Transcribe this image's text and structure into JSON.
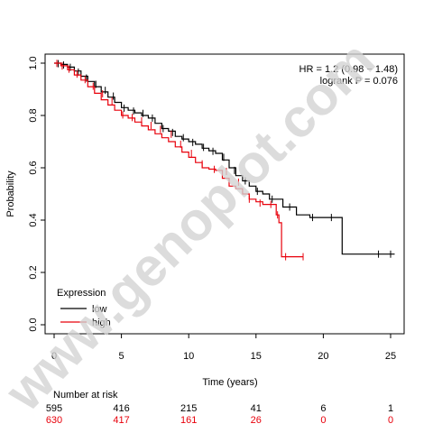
{
  "chart_data": {
    "type": "line",
    "subtype": "kaplan-meier survival curve",
    "xlabel": "Time (years)",
    "ylabel": "Probability",
    "xlim": [
      0,
      25.3
    ],
    "ylim": [
      0,
      1.0
    ],
    "x_ticks": [
      0,
      5,
      10,
      15,
      20,
      25
    ],
    "y_ticks": [
      0.0,
      0.2,
      0.4,
      0.6,
      0.8,
      1.0
    ],
    "x_tick_labels": [
      "0",
      "5",
      "10",
      "15",
      "20",
      "25"
    ],
    "y_tick_labels": [
      "0.0",
      "0.2",
      "0.4",
      "0.6",
      "0.8",
      "1.0"
    ],
    "grid": false,
    "annotations": {
      "hr": "HR = 1.2 (0.98 − 1.48)",
      "logrank": "logrank P = 0.076"
    },
    "legend": {
      "title": "Expression",
      "position": "bottom-left",
      "entries": [
        {
          "label": "low",
          "color": "#000000"
        },
        {
          "label": "high",
          "color": "#e8000b"
        }
      ]
    },
    "series": [
      {
        "name": "low",
        "color": "#000000",
        "x": [
          0,
          0.5,
          1,
          1.5,
          2,
          2.5,
          3,
          3.5,
          4,
          4.5,
          5,
          5.5,
          6,
          6.5,
          7,
          7.5,
          8,
          8.5,
          9,
          9.5,
          10,
          10.5,
          11,
          11.5,
          12,
          12.5,
          13,
          13.5,
          14,
          14.5,
          15,
          15.5,
          16,
          17,
          18,
          19,
          20,
          21.4,
          21.4,
          25.3
        ],
        "y": [
          1.0,
          0.995,
          0.985,
          0.97,
          0.95,
          0.93,
          0.91,
          0.89,
          0.87,
          0.85,
          0.83,
          0.82,
          0.81,
          0.8,
          0.79,
          0.77,
          0.75,
          0.74,
          0.72,
          0.71,
          0.7,
          0.69,
          0.675,
          0.665,
          0.655,
          0.63,
          0.6,
          0.57,
          0.55,
          0.53,
          0.51,
          0.5,
          0.48,
          0.45,
          0.42,
          0.41,
          0.41,
          0.41,
          0.27,
          0.27
        ],
        "censor_x": [
          0.3,
          0.7,
          1.2,
          1.8,
          2.4,
          3.1,
          3.8,
          4.4,
          5.2,
          5.9,
          6.6,
          7.3,
          8.1,
          8.8,
          9.6,
          10.3,
          11.1,
          11.8,
          12.6,
          13.4,
          14.2,
          15.1,
          16.2,
          17.5,
          19.2,
          20.6,
          24.1,
          25.0
        ],
        "censor_y": [
          0.998,
          0.993,
          0.984,
          0.966,
          0.943,
          0.919,
          0.896,
          0.874,
          0.828,
          0.817,
          0.808,
          0.79,
          0.75,
          0.735,
          0.715,
          0.697,
          0.678,
          0.663,
          0.64,
          0.59,
          0.55,
          0.51,
          0.48,
          0.45,
          0.41,
          0.41,
          0.27,
          0.27
        ]
      },
      {
        "name": "high",
        "color": "#e8000b",
        "x": [
          0,
          0.5,
          1,
          1.5,
          2,
          2.5,
          3,
          3.5,
          4,
          4.5,
          5,
          5.5,
          6,
          6.5,
          7,
          7.5,
          8,
          8.5,
          9,
          9.5,
          10,
          10.5,
          11,
          11.5,
          12,
          12.5,
          13,
          13.5,
          14,
          14.5,
          15,
          15.5,
          16,
          16.5,
          16.7,
          16.9,
          16.9,
          18.5
        ],
        "y": [
          1.0,
          0.99,
          0.975,
          0.955,
          0.935,
          0.91,
          0.885,
          0.86,
          0.84,
          0.82,
          0.8,
          0.79,
          0.775,
          0.76,
          0.745,
          0.73,
          0.715,
          0.7,
          0.68,
          0.66,
          0.64,
          0.62,
          0.6,
          0.595,
          0.59,
          0.56,
          0.53,
          0.52,
          0.5,
          0.48,
          0.47,
          0.46,
          0.46,
          0.42,
          0.39,
          0.38,
          0.26,
          0.26
        ],
        "censor_x": [
          0.2,
          0.6,
          1.1,
          1.7,
          2.3,
          2.9,
          3.6,
          4.3,
          5.1,
          5.8,
          6.5,
          7.2,
          7.9,
          8.7,
          9.4,
          10.2,
          11.0,
          11.9,
          12.8,
          13.7,
          14.5,
          15.3,
          16.1,
          16.6,
          17.2,
          18.5
        ],
        "censor_y": [
          0.999,
          0.989,
          0.977,
          0.958,
          0.937,
          0.912,
          0.883,
          0.855,
          0.802,
          0.792,
          0.78,
          0.762,
          0.747,
          0.728,
          0.69,
          0.655,
          0.615,
          0.594,
          0.586,
          0.545,
          0.48,
          0.465,
          0.46,
          0.42,
          0.26,
          0.26
        ]
      }
    ],
    "risk_table": {
      "title": "Number at risk",
      "times": [
        0,
        5,
        10,
        15,
        20,
        25
      ],
      "rows": [
        {
          "group": "low",
          "color": "#000000",
          "values": [
            "595",
            "416",
            "215",
            "41",
            "6",
            "1"
          ]
        },
        {
          "group": "high",
          "color": "#e8000b",
          "values": [
            "630",
            "417",
            "161",
            "26",
            "0",
            "0"
          ]
        }
      ]
    },
    "watermark": "www.genoplot.com"
  }
}
